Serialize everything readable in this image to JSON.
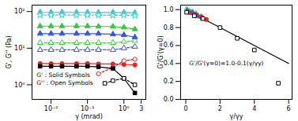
{
  "chart_data": [
    {
      "type": "scatter",
      "x_label": "γ (mrad)",
      "y_label": "G', G'' (Pa)",
      "log": true,
      "grid": false,
      "xlim": [
        0.003,
        4
      ],
      "ylim": [
        0.4,
        150
      ],
      "xticks": [
        {
          "value": 0.01,
          "label": "10⁻²"
        },
        {
          "value": 0.1,
          "label": "10⁻¹"
        },
        {
          "value": 1,
          "label": "10⁰"
        },
        3
      ],
      "yticks": [
        {
          "value": 1,
          "label": "10⁰"
        },
        {
          "value": 10,
          "label": "10¹"
        },
        {
          "value": 100,
          "label": "10²"
        }
      ],
      "annotations": [
        {
          "text": "G' : Solid Symbols",
          "x": 0.004,
          "y": 1.8
        },
        {
          "text": "G'' : Open Symbols",
          "x": 0.004,
          "y": 1.1
        }
      ],
      "series": [
        {
          "color": "#33cccc",
          "marker": "diamond",
          "line_style": "solid",
          "x": [
            0.005,
            0.01,
            0.02,
            0.05,
            0.1,
            0.2,
            0.5,
            1,
            2
          ],
          "values": [
            95,
            95,
            96,
            95,
            95,
            94,
            95,
            94,
            93
          ]
        },
        {
          "color": "#33cccc",
          "marker": "star-open",
          "line_style": "dashed",
          "x": [
            0.005,
            0.01,
            0.02,
            0.05,
            0.1,
            0.2,
            0.5,
            1,
            2
          ],
          "values": [
            80,
            80,
            81,
            80,
            80,
            80,
            79,
            80,
            78
          ]
        },
        {
          "color": "#33cc33",
          "marker": "triangle",
          "line_style": "solid",
          "x": [
            0.005,
            0.01,
            0.02,
            0.05,
            0.1,
            0.2,
            0.5,
            1,
            2
          ],
          "values": [
            40,
            40,
            40,
            40,
            40,
            39,
            39,
            37,
            33
          ]
        },
        {
          "color": "#33cc33",
          "marker": "triangle-open",
          "line_style": "dashed",
          "x": [
            0.005,
            0.01,
            0.02,
            0.05,
            0.1,
            0.2,
            0.5,
            1,
            2
          ],
          "values": [
            14,
            14,
            14,
            14,
            14,
            14,
            14,
            15,
            16
          ]
        },
        {
          "color": "#3355ee",
          "marker": "triangle",
          "line_style": "solid",
          "x": [
            0.005,
            0.01,
            0.02,
            0.05,
            0.1,
            0.2,
            0.5,
            1,
            2
          ],
          "values": [
            25,
            25,
            25,
            25,
            25,
            25,
            24,
            23,
            20
          ]
        },
        {
          "color": "#3355ee",
          "marker": "triangle-open",
          "line_style": "dashed",
          "x": [
            0.005,
            0.01,
            0.02,
            0.05,
            0.1,
            0.2,
            0.5,
            1,
            2
          ],
          "values": [
            9,
            9,
            9,
            9,
            9,
            9,
            9,
            10,
            11
          ]
        },
        {
          "color": "#ee2222",
          "marker": "circle",
          "line_style": "solid",
          "x": [
            0.005,
            0.01,
            0.02,
            0.05,
            0.1,
            0.2,
            0.5,
            1,
            2
          ],
          "values": [
            3.8,
            3.8,
            3.8,
            3.8,
            3.8,
            3.7,
            3.7,
            3.6,
            3.5
          ]
        },
        {
          "color": "#ee2222",
          "marker": "circle-open",
          "line_style": "dashed",
          "x": [
            0.2,
            0.5,
            1,
            2
          ],
          "values": [
            2,
            3,
            4.5,
            5
          ]
        },
        {
          "color": "#000000",
          "marker": "square",
          "line_style": "solid",
          "x": [
            0.005,
            0.01,
            0.02,
            0.05,
            0.1,
            0.2,
            0.5,
            1,
            2
          ],
          "values": [
            3.2,
            3.2,
            3.2,
            3.2,
            3.2,
            3.1,
            2.8,
            1.5,
            0.6
          ]
        },
        {
          "color": "#000000",
          "marker": "square-open",
          "line_style": "dashed",
          "x": [
            0.3,
            0.5,
            1,
            2
          ],
          "values": [
            1.1,
            1.3,
            1.5,
            1.0
          ]
        }
      ]
    },
    {
      "type": "scatter",
      "x_label": "γ/γy",
      "y_label": "G'/G'(γ=0)",
      "grid": false,
      "xlim": [
        -0.3,
        6.2
      ],
      "ylim": [
        0,
        1.05
      ],
      "xticks": [
        0,
        2,
        4,
        6
      ],
      "yticks": [
        {
          "value": 0,
          "label": "0.0"
        },
        0.2,
        0.4,
        0.6,
        0.8,
        {
          "value": 1,
          "label": "1.0"
        }
      ],
      "annotations": [
        {
          "text": "G'/G'(γ=0)=1.0-0.1(γ/γy)",
          "x": 0.2,
          "y": 0.4
        }
      ],
      "series": [
        {
          "type": "line",
          "color": "#000000",
          "line_style": "solid",
          "x": [
            0,
            6
          ],
          "values": [
            1.0,
            0.4
          ]
        },
        {
          "color": "#33cccc",
          "marker": "diamond",
          "x": [
            0.05,
            0.2,
            0.4,
            0.6
          ],
          "values": [
            1.0,
            0.98,
            0.97,
            0.95
          ]
        },
        {
          "color": "#33cc33",
          "marker": "triangle",
          "x": [
            0.1,
            0.3,
            0.6,
            0.9
          ],
          "values": [
            0.99,
            0.97,
            0.95,
            0.92
          ]
        },
        {
          "color": "#3355ee",
          "marker": "triangle",
          "x": [
            0.1,
            0.4,
            0.7,
            1.0
          ],
          "values": [
            0.98,
            0.96,
            0.93,
            0.9
          ]
        },
        {
          "color": "#ee2222",
          "marker": "circle",
          "x": [
            0.2,
            0.5,
            0.9,
            1.2
          ],
          "values": [
            0.97,
            0.95,
            0.92,
            0.89
          ]
        },
        {
          "color": "#000000",
          "marker": "square-open",
          "x": [
            0.05,
            0.5,
            1,
            2,
            3,
            4,
            5.4
          ],
          "values": [
            0.97,
            0.93,
            0.9,
            0.8,
            0.68,
            0.55,
            0.18
          ]
        }
      ]
    }
  ]
}
